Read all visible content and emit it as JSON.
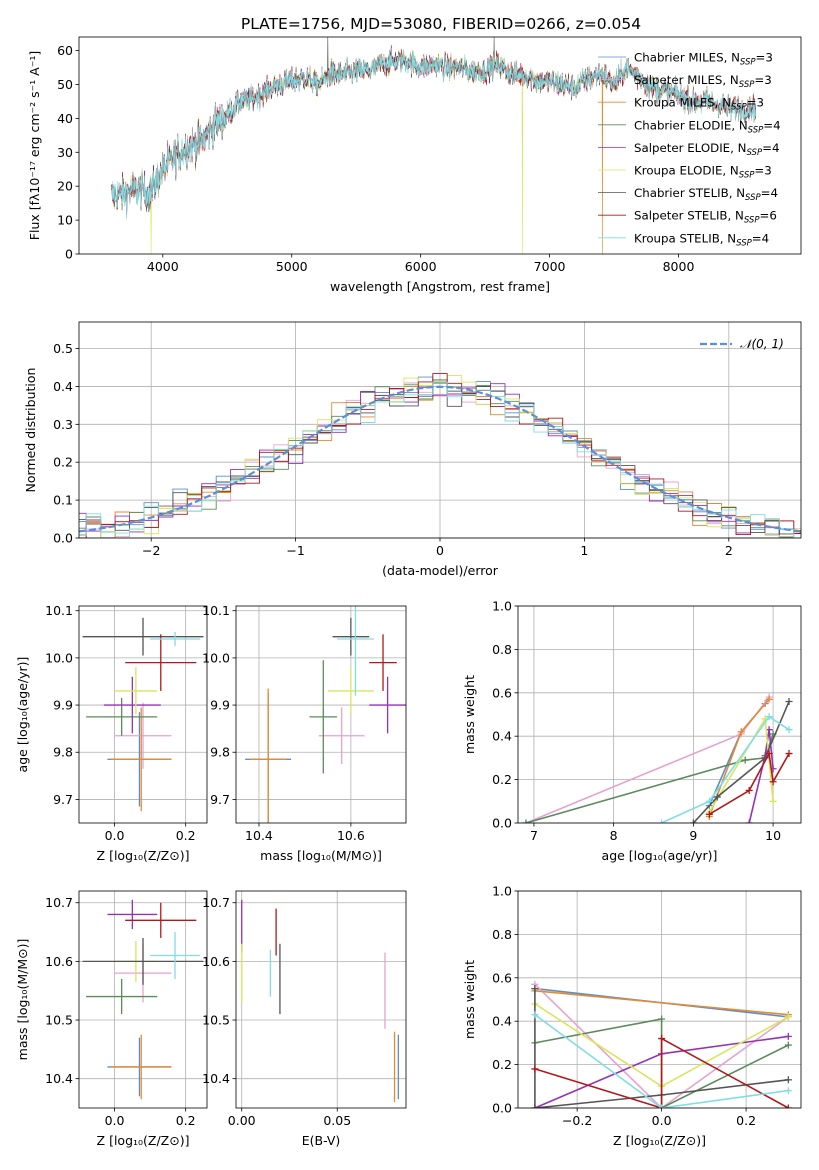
{
  "figure": {
    "title": "PLATE=1756, MJD=53080, FIBERID=0266, z=0.054"
  },
  "colors": {
    "chabrier_miles": "#5b8fc9",
    "salpeter_miles": "#e6a3cf",
    "kroupa_miles": "#e58a33",
    "chabrier_elodie": "#5c8a5c",
    "salpeter_elodie": "#9432b5",
    "kroupa_elodie": "#d8e65c",
    "chabrier_stelib": "#555555",
    "salpeter_stelib": "#b0191b",
    "kroupa_stelib": "#80dde6",
    "normal_curve": "#5b8fd6",
    "grid": "#b0b0b0"
  },
  "chart_data": [
    {
      "id": "spectrum",
      "type": "line",
      "title": "PLATE=1756, MJD=53080, FIBERID=0266, z=0.054",
      "xlabel": "wavelength [Angstrom, rest frame]",
      "ylabel": "Flux [fλ10⁻¹⁷ erg cm⁻² s⁻¹ A⁻¹]",
      "xlim": [
        3350,
        8950
      ],
      "ylim": [
        0,
        64
      ],
      "xticks": [
        4000,
        5000,
        6000,
        7000,
        8000
      ],
      "yticks": [
        0,
        10,
        20,
        30,
        40,
        50,
        60
      ],
      "grid": false,
      "legend_position": "top-right",
      "x_range": [
        3600,
        8600
      ],
      "continuum": [
        [
          3600,
          17
        ],
        [
          3700,
          18
        ],
        [
          3800,
          19
        ],
        [
          3900,
          18
        ],
        [
          4000,
          25
        ],
        [
          4100,
          29
        ],
        [
          4200,
          32
        ],
        [
          4300,
          33
        ],
        [
          4400,
          38
        ],
        [
          4500,
          41
        ],
        [
          4600,
          45
        ],
        [
          4700,
          46
        ],
        [
          4800,
          48
        ],
        [
          4900,
          50
        ],
        [
          5000,
          51
        ],
        [
          5100,
          52
        ],
        [
          5200,
          50
        ],
        [
          5300,
          53
        ],
        [
          5400,
          53
        ],
        [
          5500,
          54
        ],
        [
          5600,
          54
        ],
        [
          5700,
          56
        ],
        [
          5800,
          57
        ],
        [
          5900,
          57
        ],
        [
          6000,
          55
        ],
        [
          6100,
          56
        ],
        [
          6200,
          55
        ],
        [
          6300,
          55
        ],
        [
          6400,
          54
        ],
        [
          6500,
          54
        ],
        [
          6600,
          56
        ],
        [
          6700,
          53
        ],
        [
          6800,
          53
        ],
        [
          6900,
          51
        ],
        [
          7000,
          51
        ],
        [
          7100,
          50
        ],
        [
          7200,
          49
        ],
        [
          7300,
          52
        ],
        [
          7400,
          53
        ],
        [
          7500,
          50
        ],
        [
          7600,
          55
        ],
        [
          7700,
          52
        ],
        [
          7800,
          49
        ],
        [
          7900,
          48
        ],
        [
          8000,
          47
        ],
        [
          8100,
          45
        ],
        [
          8200,
          45
        ],
        [
          8300,
          44
        ],
        [
          8400,
          43
        ],
        [
          8500,
          43
        ],
        [
          8600,
          43
        ]
      ],
      "series": [
        {
          "name": "Chabrier MILES, N",
          "sub": "SSP",
          "suffix": "=3",
          "color_key": "chabrier_miles"
        },
        {
          "name": "Salpeter MILES, N",
          "sub": "SSP",
          "suffix": "=3",
          "color_key": "salpeter_miles"
        },
        {
          "name": "Kroupa MILES, N",
          "sub": "SSP",
          "suffix": "=3",
          "color_key": "kroupa_miles"
        },
        {
          "name": "Chabrier ELODIE, N",
          "sub": "SSP",
          "suffix": "=4",
          "color_key": "chabrier_elodie"
        },
        {
          "name": "Salpeter ELODIE, N",
          "sub": "SSP",
          "suffix": "=4",
          "color_key": "salpeter_elodie"
        },
        {
          "name": "Kroupa ELODIE, N",
          "sub": "SSP",
          "suffix": "=3",
          "color_key": "kroupa_elodie"
        },
        {
          "name": "Chabrier STELIB, N",
          "sub": "SSP",
          "suffix": "=4",
          "color_key": "chabrier_stelib"
        },
        {
          "name": "Salpeter STELIB, N",
          "sub": "SSP",
          "suffix": "=6",
          "color_key": "salpeter_stelib"
        },
        {
          "name": "Kroupa STELIB, N",
          "sub": "SSP",
          "suffix": "=4",
          "color_key": "kroupa_stelib"
        }
      ],
      "dropouts": [
        {
          "x": 3910,
          "color_key": "kroupa_elodie"
        },
        {
          "x": 6790,
          "color_key": "kroupa_elodie"
        },
        {
          "x": 7410,
          "color_key": "kroupa_miles"
        }
      ]
    },
    {
      "id": "residuals",
      "type": "histogram",
      "xlabel": "(data-model)/error",
      "ylabel": "Normed distribution",
      "xlim": [
        -2.5,
        2.5
      ],
      "ylim": [
        0,
        0.57
      ],
      "xticks": [
        -2,
        -1,
        0,
        1,
        2
      ],
      "yticks": [
        0.0,
        0.1,
        0.2,
        0.3,
        0.4,
        0.5
      ],
      "grid": true,
      "legend_position": "top-right",
      "legend": "𝒩(0, 1)",
      "bin_width": 0.1
    },
    {
      "id": "age_vs_Z",
      "type": "errorbar",
      "xlabel": "Z [log₁₀(Z/Z⊙)]",
      "ylabel": "age  [log₁₀(age/yr)]",
      "xlim": [
        -0.1,
        0.26
      ],
      "ylim": [
        9.65,
        10.11
      ],
      "xticks": [
        0.0,
        0.2
      ],
      "yticks": [
        9.7,
        9.8,
        9.9,
        10.0,
        10.1
      ],
      "grid": true,
      "points": [
        {
          "x": 0.07,
          "y": 9.785,
          "xerr": 0.09,
          "yerr": 0.1,
          "color_key": "chabrier_miles"
        },
        {
          "x": 0.08,
          "y": 9.835,
          "xerr": 0.08,
          "yerr": 0.07,
          "color_key": "salpeter_miles"
        },
        {
          "x": 0.075,
          "y": 9.785,
          "xerr": 0.085,
          "yerr": 0.11,
          "color_key": "kroupa_miles"
        },
        {
          "x": 0.02,
          "y": 9.875,
          "xerr": 0.1,
          "yerr": 0.04,
          "color_key": "chabrier_elodie"
        },
        {
          "x": 0.05,
          "y": 9.9,
          "xerr": 0.08,
          "yerr": 0.06,
          "color_key": "salpeter_elodie"
        },
        {
          "x": 0.06,
          "y": 9.93,
          "xerr": 0.06,
          "yerr": 0.05,
          "color_key": "kroupa_elodie"
        },
        {
          "x": 0.08,
          "y": 10.045,
          "xerr": 0.17,
          "yerr": 0.04,
          "color_key": "chabrier_stelib"
        },
        {
          "x": 0.13,
          "y": 9.99,
          "xerr": 0.1,
          "yerr": 0.06,
          "color_key": "salpeter_stelib"
        },
        {
          "x": 0.17,
          "y": 10.04,
          "xerr": 0.07,
          "yerr": 0.015,
          "color_key": "kroupa_stelib"
        }
      ]
    },
    {
      "id": "age_vs_mass",
      "type": "errorbar",
      "xlabel": "mass [log₁₀(M/M⊙)]",
      "ylabel": "",
      "xlim": [
        10.35,
        10.72
      ],
      "ylim": [
        9.65,
        10.11
      ],
      "xticks": [
        10.4,
        10.6
      ],
      "yticks": [
        9.7,
        9.8,
        9.9,
        10.0,
        10.1
      ],
      "grid": true,
      "points": [
        {
          "x": 10.42,
          "y": 9.785,
          "xerr": 0.05,
          "yerr": 0.14,
          "color_key": "chabrier_miles"
        },
        {
          "x": 10.58,
          "y": 9.835,
          "xerr": 0.05,
          "yerr": 0.06,
          "color_key": "salpeter_miles"
        },
        {
          "x": 10.42,
          "y": 9.785,
          "xerr": 0.04,
          "yerr": 0.15,
          "color_key": "kroupa_miles"
        },
        {
          "x": 10.54,
          "y": 9.875,
          "xerr": 0.03,
          "yerr": 0.12,
          "color_key": "chabrier_elodie"
        },
        {
          "x": 10.68,
          "y": 9.9,
          "xerr": 0.04,
          "yerr": 0.06,
          "color_key": "salpeter_elodie"
        },
        {
          "x": 10.6,
          "y": 9.93,
          "xerr": 0.05,
          "yerr": 0.05,
          "color_key": "kroupa_elodie"
        },
        {
          "x": 10.6,
          "y": 10.045,
          "xerr": 0.04,
          "yerr": 0.04,
          "color_key": "chabrier_stelib"
        },
        {
          "x": 10.67,
          "y": 9.99,
          "xerr": 0.03,
          "yerr": 0.06,
          "color_key": "salpeter_stelib"
        },
        {
          "x": 10.61,
          "y": 10.04,
          "xerr": 0.04,
          "yerr": 0.12,
          "color_key": "kroupa_stelib"
        }
      ]
    },
    {
      "id": "mass_weight_vs_age",
      "type": "line",
      "xlabel": "age  [log₁₀(age/yr)]",
      "ylabel": "mass weight",
      "xlim": [
        6.8,
        10.35
      ],
      "ylim": [
        0,
        1.0
      ],
      "xticks": [
        7,
        8,
        9,
        10
      ],
      "yticks": [
        0.0,
        0.2,
        0.4,
        0.6,
        0.8,
        1.0
      ],
      "grid": true,
      "series": [
        {
          "color_key": "chabrier_miles",
          "points": [
            [
              9.2,
              0.08
            ],
            [
              9.6,
              0.42
            ],
            [
              9.9,
              0.55
            ]
          ]
        },
        {
          "color_key": "salpeter_miles",
          "points": [
            [
              6.9,
              0.0
            ],
            [
              9.6,
              0.41
            ],
            [
              9.95,
              0.58
            ]
          ]
        },
        {
          "color_key": "kroupa_miles",
          "points": [
            [
              9.2,
              0.03
            ],
            [
              9.6,
              0.42
            ],
            [
              9.95,
              0.57
            ]
          ]
        },
        {
          "color_key": "chabrier_elodie",
          "points": [
            [
              6.9,
              0.0
            ],
            [
              9.65,
              0.29
            ],
            [
              9.9,
              0.3
            ],
            [
              10.0,
              0.41
            ]
          ]
        },
        {
          "color_key": "salpeter_elodie",
          "points": [
            [
              9.7,
              0.0
            ],
            [
              9.9,
              0.31
            ],
            [
              9.95,
              0.43
            ],
            [
              10.0,
              0.25
            ]
          ]
        },
        {
          "color_key": "kroupa_elodie",
          "points": [
            [
              9.2,
              0.05
            ],
            [
              9.9,
              0.48
            ],
            [
              10.0,
              0.1
            ]
          ]
        },
        {
          "color_key": "chabrier_stelib",
          "points": [
            [
              9.0,
              0.0
            ],
            [
              9.3,
              0.12
            ],
            [
              9.9,
              0.3
            ],
            [
              10.2,
              0.56
            ]
          ]
        },
        {
          "color_key": "salpeter_stelib",
          "points": [
            [
              9.2,
              0.04
            ],
            [
              9.7,
              0.15
            ],
            [
              9.95,
              0.32
            ],
            [
              10.0,
              0.19
            ],
            [
              10.2,
              0.32
            ]
          ]
        },
        {
          "color_key": "kroupa_stelib",
          "points": [
            [
              8.6,
              0.0
            ],
            [
              9.2,
              0.1
            ],
            [
              9.95,
              0.49
            ],
            [
              10.2,
              0.43
            ]
          ]
        }
      ]
    },
    {
      "id": "mass_vs_Z",
      "type": "errorbar",
      "xlabel": "Z [log₁₀(Z/Z⊙)]",
      "ylabel": "mass [log₁₀(M/M⊙)]",
      "xlim": [
        -0.1,
        0.26
      ],
      "ylim": [
        10.35,
        10.72
      ],
      "xticks": [
        0.0,
        0.2
      ],
      "yticks": [
        10.4,
        10.5,
        10.6,
        10.7
      ],
      "grid": true,
      "points": [
        {
          "x": 0.07,
          "y": 10.42,
          "xerr": 0.09,
          "yerr": 0.05,
          "color_key": "chabrier_miles"
        },
        {
          "x": 0.08,
          "y": 10.58,
          "xerr": 0.08,
          "yerr": 0.05,
          "color_key": "salpeter_miles"
        },
        {
          "x": 0.075,
          "y": 10.42,
          "xerr": 0.085,
          "yerr": 0.055,
          "color_key": "kroupa_miles"
        },
        {
          "x": 0.02,
          "y": 10.54,
          "xerr": 0.1,
          "yerr": 0.03,
          "color_key": "chabrier_elodie"
        },
        {
          "x": 0.05,
          "y": 10.68,
          "xerr": 0.07,
          "yerr": 0.025,
          "color_key": "salpeter_elodie"
        },
        {
          "x": 0.06,
          "y": 10.6,
          "xerr": 0.06,
          "yerr": 0.035,
          "color_key": "kroupa_elodie"
        },
        {
          "x": 0.08,
          "y": 10.6,
          "xerr": 0.17,
          "yerr": 0.04,
          "color_key": "chabrier_stelib"
        },
        {
          "x": 0.13,
          "y": 10.67,
          "xerr": 0.1,
          "yerr": 0.03,
          "color_key": "salpeter_stelib"
        },
        {
          "x": 0.17,
          "y": 10.61,
          "xerr": 0.07,
          "yerr": 0.04,
          "color_key": "kroupa_stelib"
        }
      ]
    },
    {
      "id": "mass_vs_ebv",
      "type": "errorbar",
      "xlabel": "E(B-V)",
      "ylabel": "",
      "xlim": [
        -0.003,
        0.086
      ],
      "ylim": [
        10.35,
        10.72
      ],
      "xticks": [
        0.0,
        0.05
      ],
      "yticks": [
        10.4,
        10.5,
        10.6,
        10.7
      ],
      "grid": true,
      "points": [
        {
          "x": 0.0,
          "y": 10.66,
          "yerr": 0.045,
          "color_key": "salpeter_elodie"
        },
        {
          "x": 0.0,
          "y": 10.58,
          "yerr": 0.05,
          "color_key": "kroupa_elodie"
        },
        {
          "x": 0.015,
          "y": 10.58,
          "yerr": 0.04,
          "color_key": "kroupa_stelib"
        },
        {
          "x": 0.018,
          "y": 10.65,
          "yerr": 0.04,
          "color_key": "salpeter_stelib"
        },
        {
          "x": 0.02,
          "y": 10.57,
          "yerr": 0.06,
          "color_key": "chabrier_stelib"
        },
        {
          "x": 0.075,
          "y": 10.55,
          "yerr": 0.065,
          "color_key": "salpeter_miles"
        },
        {
          "x": 0.08,
          "y": 10.42,
          "yerr": 0.06,
          "color_key": "kroupa_miles"
        },
        {
          "x": 0.082,
          "y": 10.42,
          "yerr": 0.055,
          "color_key": "chabrier_miles"
        }
      ]
    },
    {
      "id": "mass_weight_vs_Z",
      "type": "line",
      "xlabel": "Z [log₁₀(Z/Z⊙)]",
      "ylabel": "mass weight",
      "xlim": [
        -0.34,
        0.33
      ],
      "ylim": [
        0,
        1.0
      ],
      "xticks": [
        -0.2,
        0.0,
        0.2
      ],
      "yticks": [
        0.0,
        0.2,
        0.4,
        0.6,
        0.8,
        1.0
      ],
      "grid": true,
      "series": [
        {
          "color_key": "chabrier_miles",
          "points": [
            [
              -0.3,
              0.55
            ],
            [
              0.3,
              0.42
            ]
          ]
        },
        {
          "color_key": "salpeter_miles",
          "points": [
            [
              -0.3,
              0.57
            ],
            [
              0.0,
              0.0
            ],
            [
              0.3,
              0.42
            ]
          ]
        },
        {
          "color_key": "kroupa_miles",
          "points": [
            [
              -0.3,
              0.54
            ],
            [
              0.3,
              0.43
            ]
          ]
        },
        {
          "color_key": "chabrier_elodie",
          "points": [
            [
              -0.3,
              0.3
            ],
            [
              0.0,
              0.41
            ],
            [
              0.0,
              0.0
            ],
            [
              0.3,
              0.29
            ]
          ]
        },
        {
          "color_key": "salpeter_elodie",
          "points": [
            [
              -0.3,
              0.0
            ],
            [
              0.0,
              0.25
            ],
            [
              0.3,
              0.33
            ]
          ]
        },
        {
          "color_key": "kroupa_elodie",
          "points": [
            [
              -0.3,
              0.48
            ],
            [
              0.0,
              0.1
            ],
            [
              0.3,
              0.42
            ]
          ]
        },
        {
          "color_key": "chabrier_stelib",
          "points": [
            [
              -0.3,
              0.55
            ],
            [
              -0.3,
              0.0
            ],
            [
              0.0,
              0.06
            ],
            [
              0.3,
              0.13
            ]
          ]
        },
        {
          "color_key": "salpeter_stelib",
          "points": [
            [
              -0.3,
              0.18
            ],
            [
              0.0,
              0.0
            ],
            [
              0.0,
              0.32
            ],
            [
              0.3,
              0.0
            ]
          ]
        },
        {
          "color_key": "kroupa_stelib",
          "points": [
            [
              -0.3,
              0.43
            ],
            [
              0.0,
              0.0
            ],
            [
              0.3,
              0.08
            ]
          ]
        }
      ]
    }
  ]
}
